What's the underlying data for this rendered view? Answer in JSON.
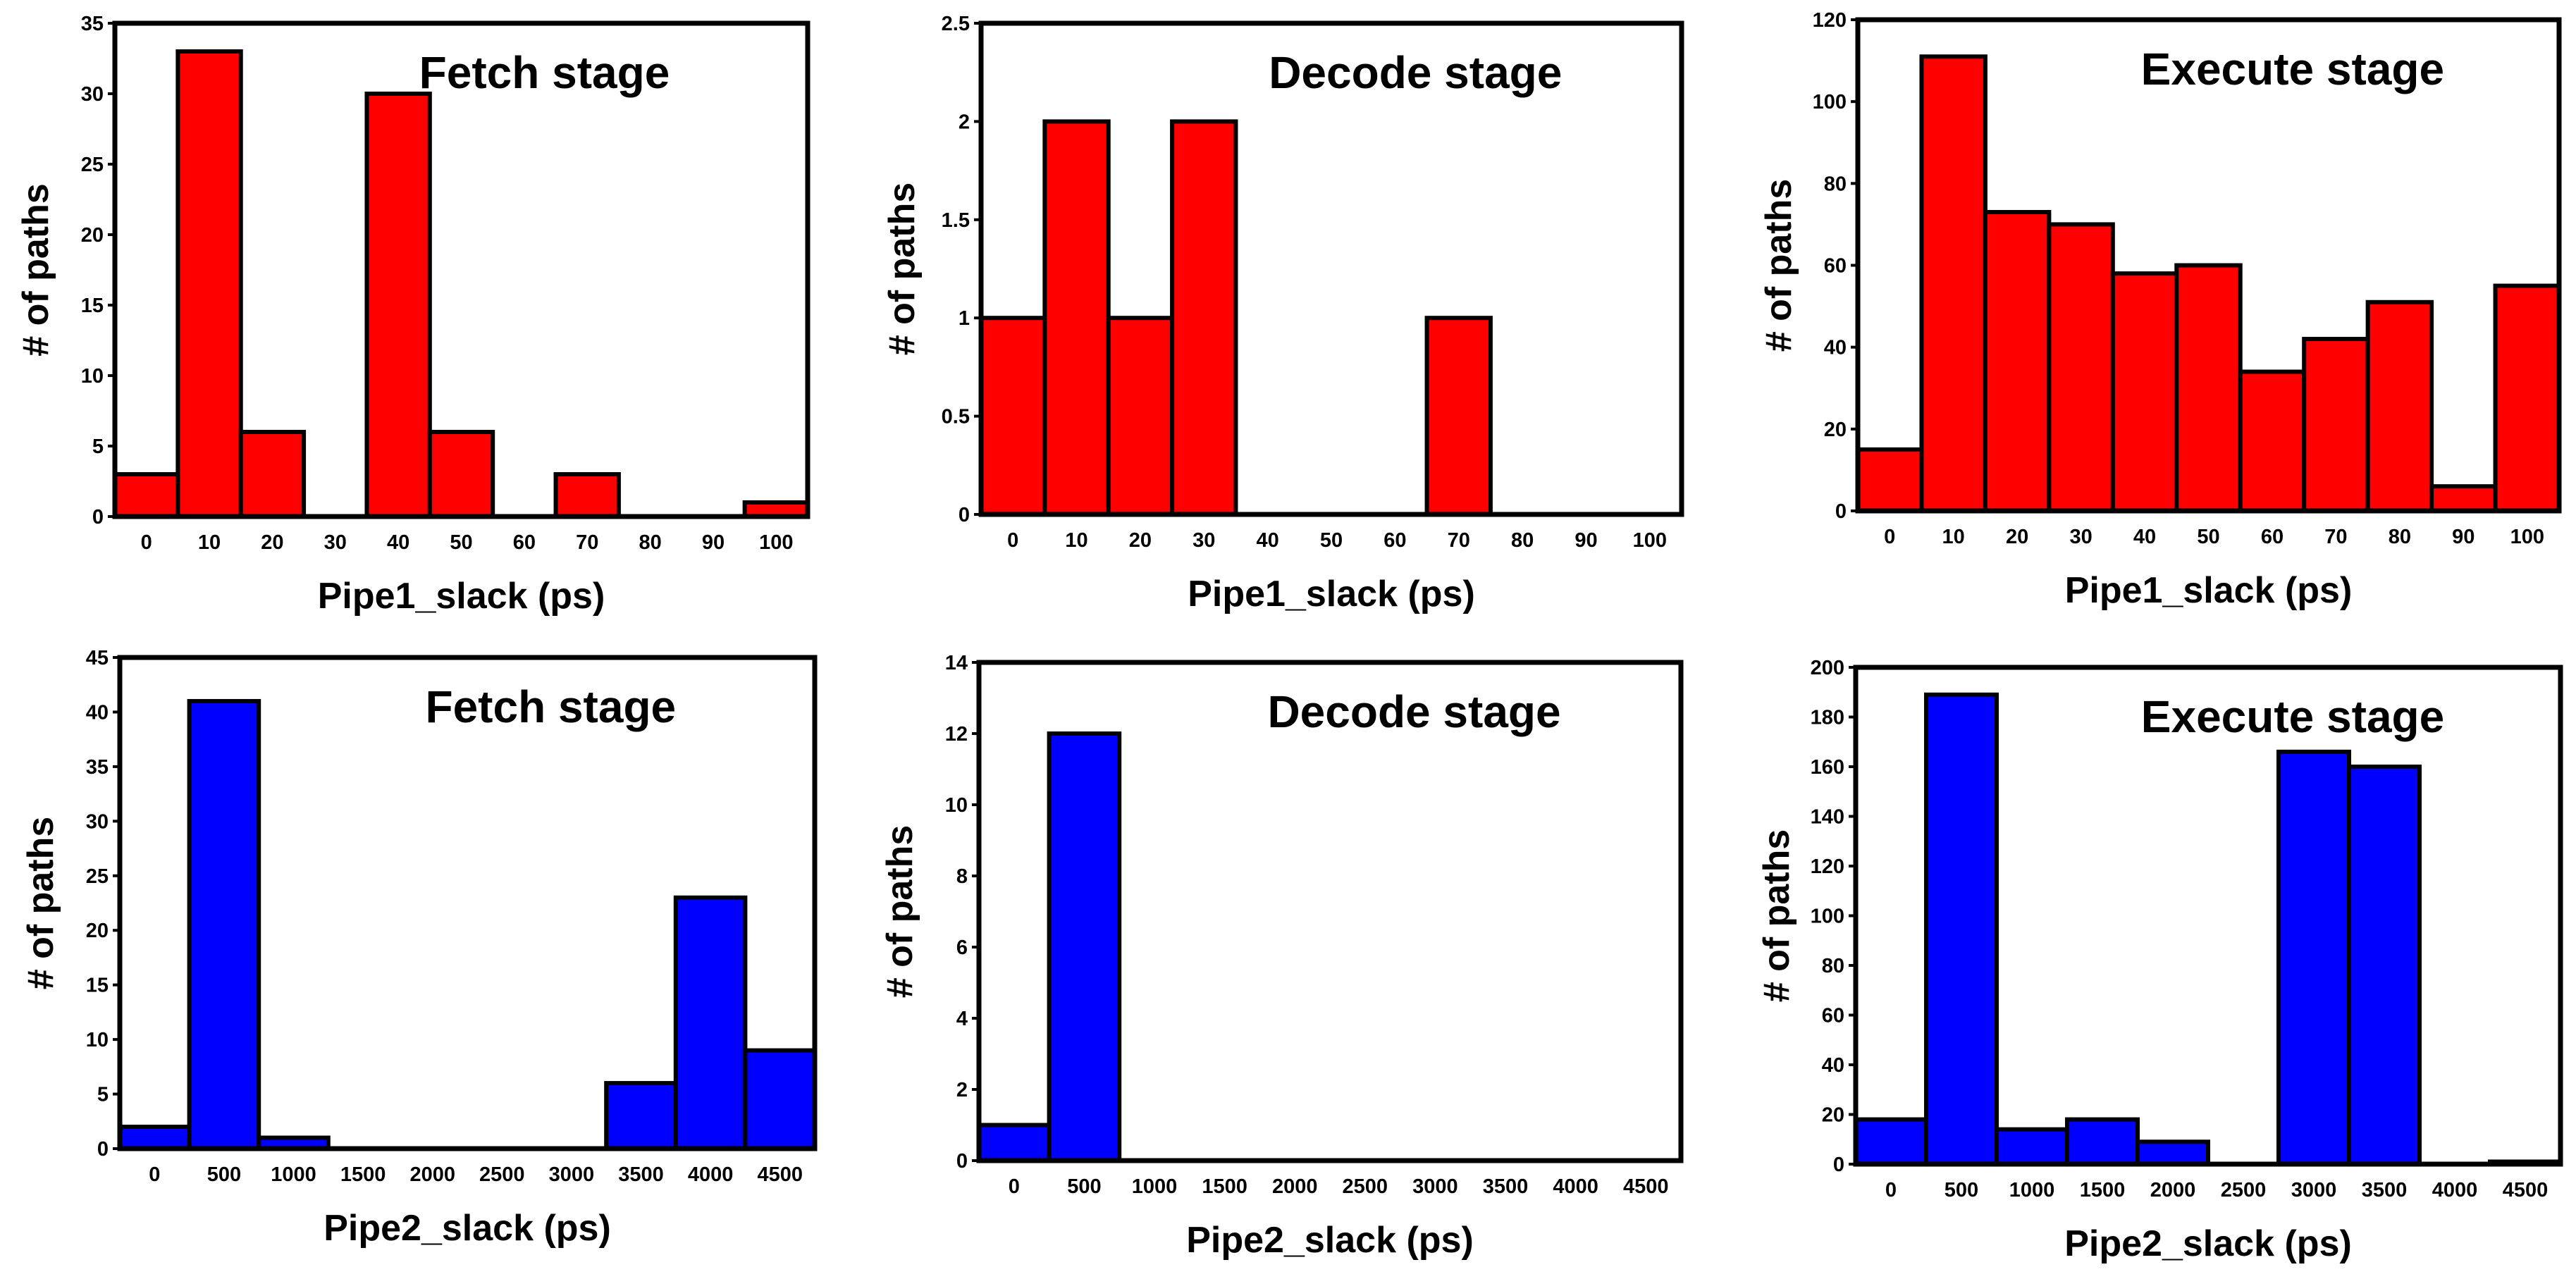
{
  "chart_data": [
    {
      "type": "bar",
      "title": "Fetch stage",
      "xlabel": "Pipe1_slack (ps)",
      "ylabel": "# of paths",
      "categories": [
        "0",
        "10",
        "20",
        "30",
        "40",
        "50",
        "60",
        "70",
        "80",
        "90",
        "100"
      ],
      "values": [
        3,
        33,
        6,
        0,
        30,
        6,
        0,
        3,
        0,
        0,
        1
      ],
      "ylim": [
        0,
        35
      ],
      "yticks": [
        "0",
        "5",
        "10",
        "15",
        "20",
        "25",
        "30",
        "35"
      ],
      "bar_color": "#FF0000",
      "grid": false
    },
    {
      "type": "bar",
      "title": "Decode stage",
      "xlabel": "Pipe1_slack (ps)",
      "ylabel": "# of paths",
      "categories": [
        "0",
        "10",
        "20",
        "30",
        "40",
        "50",
        "60",
        "70",
        "80",
        "90",
        "100"
      ],
      "values": [
        1,
        2,
        1,
        2,
        0,
        0,
        0,
        1,
        0,
        0,
        0
      ],
      "ylim": [
        0,
        2.5
      ],
      "yticks": [
        "0",
        "0.5",
        "1",
        "1.5",
        "2",
        "2.5"
      ],
      "bar_color": "#FF0000",
      "grid": false
    },
    {
      "type": "bar",
      "title": "Execute stage",
      "xlabel": "Pipe1_slack (ps)",
      "ylabel": "# of paths",
      "categories": [
        "0",
        "10",
        "20",
        "30",
        "40",
        "50",
        "60",
        "70",
        "80",
        "90",
        "100"
      ],
      "values": [
        15,
        111,
        73,
        70,
        58,
        60,
        34,
        42,
        51,
        6,
        55
      ],
      "ylim": [
        0,
        120
      ],
      "yticks": [
        "0",
        "20",
        "40",
        "60",
        "80",
        "100",
        "120"
      ],
      "bar_color": "#FF0000",
      "grid": false
    },
    {
      "type": "bar",
      "title": "Fetch stage",
      "xlabel": "Pipe2_slack (ps)",
      "ylabel": "# of paths",
      "categories": [
        "0",
        "500",
        "1000",
        "1500",
        "2000",
        "2500",
        "3000",
        "3500",
        "4000",
        "4500"
      ],
      "values": [
        2,
        41,
        1,
        0,
        0,
        0,
        0,
        6,
        23,
        9
      ],
      "ylim": [
        0,
        45
      ],
      "yticks": [
        "0",
        "5",
        "10",
        "15",
        "20",
        "25",
        "30",
        "35",
        "40",
        "45"
      ],
      "bar_color": "#0000FF",
      "grid": false
    },
    {
      "type": "bar",
      "title": "Decode stage",
      "xlabel": "Pipe2_slack (ps)",
      "ylabel": "# of paths",
      "categories": [
        "0",
        "500",
        "1000",
        "1500",
        "2000",
        "2500",
        "3000",
        "3500",
        "4000",
        "4500"
      ],
      "values": [
        1,
        12,
        0,
        0,
        0,
        0,
        0,
        0,
        0,
        0
      ],
      "ylim": [
        0,
        14
      ],
      "yticks": [
        "0",
        "2",
        "4",
        "6",
        "8",
        "10",
        "12",
        "14"
      ],
      "bar_color": "#0000FF",
      "grid": false
    },
    {
      "type": "bar",
      "title": "Execute stage",
      "xlabel": "Pipe2_slack (ps)",
      "ylabel": "# of paths",
      "categories": [
        "0",
        "500",
        "1000",
        "1500",
        "2000",
        "2500",
        "3000",
        "3500",
        "4000",
        "4500"
      ],
      "values": [
        18,
        189,
        14,
        18,
        9,
        0,
        166,
        160,
        0,
        1
      ],
      "ylim": [
        0,
        200
      ],
      "yticks": [
        "0",
        "20",
        "40",
        "60",
        "80",
        "100",
        "120",
        "140",
        "160",
        "180",
        "200"
      ],
      "bar_color": "#0000FF",
      "grid": false
    }
  ]
}
